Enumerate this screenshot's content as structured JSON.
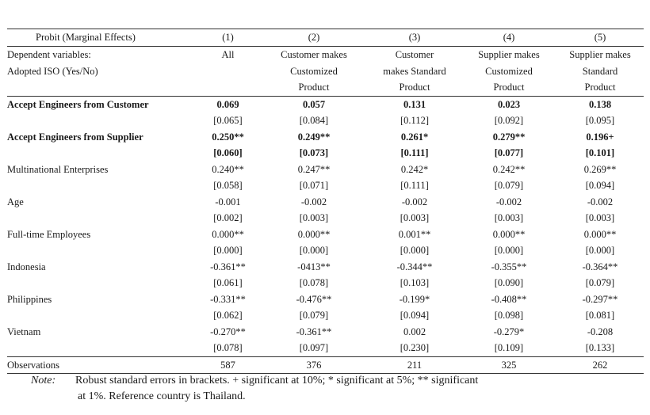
{
  "header": {
    "label": "Probit (Marginal Effects)",
    "cols": [
      "(1)",
      "(2)",
      "(3)",
      "(4)",
      "(5)"
    ]
  },
  "dependent": {
    "line1_label": "Dependent variables:",
    "line2_label": "Adopted ISO (Yes/No)",
    "cols": [
      [
        "All",
        "",
        ""
      ],
      [
        "Customer makes",
        "Customized",
        "Product"
      ],
      [
        "Customer",
        "makes Standard",
        "Product"
      ],
      [
        "Supplier makes",
        "Customized",
        "Product"
      ],
      [
        "Supplier makes",
        "Standard",
        "Product"
      ]
    ]
  },
  "rows": [
    {
      "label": "Accept Engineers from Customer",
      "bold": true,
      "coef": [
        "0.069",
        "0.057",
        "0.131",
        "0.023",
        "0.138"
      ],
      "se": [
        "[0.065]",
        "[0.084]",
        "[0.112]",
        "[0.092]",
        "[0.095]"
      ],
      "se_bold": false
    },
    {
      "label": "Accept Engineers from Supplier",
      "bold": true,
      "coef": [
        "0.250**",
        "0.249**",
        "0.261*",
        "0.279**",
        "0.196+"
      ],
      "se": [
        "[0.060]",
        "[0.073]",
        "[0.111]",
        "[0.077]",
        "[0.101]"
      ],
      "se_bold": true
    },
    {
      "label": "Multinational Enterprises",
      "bold": false,
      "coef": [
        "0.240**",
        "0.247**",
        "0.242*",
        "0.242**",
        "0.269**"
      ],
      "se": [
        "[0.058]",
        "[0.071]",
        "[0.111]",
        "[0.079]",
        "[0.094]"
      ],
      "se_bold": false
    },
    {
      "label": "Age",
      "bold": false,
      "coef": [
        "-0.001",
        "-0.002",
        "-0.002",
        "-0.002",
        "-0.002"
      ],
      "se": [
        "[0.002]",
        "[0.003]",
        "[0.003]",
        "[0.003]",
        "[0.003]"
      ],
      "se_bold": false
    },
    {
      "label": "Full-time Employees",
      "bold": false,
      "coef": [
        "0.000**",
        "0.000**",
        "0.001**",
        "0.000**",
        "0.000**"
      ],
      "se": [
        "[0.000]",
        "[0.000]",
        "[0.000]",
        "[0.000]",
        "[0.000]"
      ],
      "se_bold": false
    },
    {
      "label": "Indonesia",
      "bold": false,
      "coef": [
        "-0.361**",
        "-0413**",
        "-0.344**",
        "-0.355**",
        "-0.364**"
      ],
      "se": [
        "[0.061]",
        "[0.078]",
        "[0.103]",
        "[0.090]",
        "[0.079]"
      ],
      "se_bold": false
    },
    {
      "label": "Philippines",
      "bold": false,
      "coef": [
        "-0.331**",
        "-0.476**",
        "-0.199*",
        "-0.408**",
        "-0.297**"
      ],
      "se": [
        "[0.062]",
        "[0.079]",
        "[0.094]",
        "[0.098]",
        "[0.081]"
      ],
      "se_bold": false
    },
    {
      "label": "Vietnam",
      "bold": false,
      "coef": [
        "-0.270**",
        "-0.361**",
        "0.002",
        "-0.279*",
        "-0.208"
      ],
      "se": [
        "[0.078]",
        "[0.097]",
        "[0.230]",
        "[0.109]",
        "[0.133]"
      ],
      "se_bold": false
    }
  ],
  "observations": {
    "label": "Observations",
    "values": [
      "587",
      "376",
      "211",
      "325",
      "262"
    ]
  },
  "note": {
    "label": "Note:",
    "line1": "Robust standard errors in brackets. + significant at 10%; * significant at 5%; ** significant",
    "line2": "at 1%.   Reference country is Thailand."
  }
}
